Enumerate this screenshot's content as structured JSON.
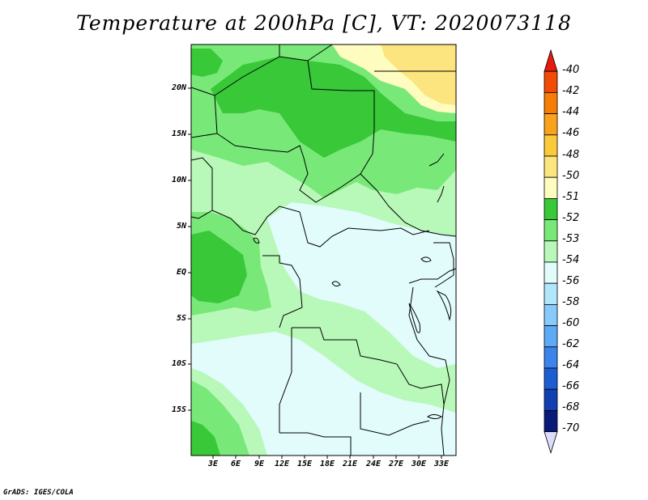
{
  "title": "Temperature at 200hPa [C], VT: 2020073118",
  "credit": "GrADS: IGES/COLA",
  "map": {
    "lat_labels": [
      "20N",
      "15N",
      "10N",
      "5N",
      "EQ",
      "5S",
      "10S",
      "15S"
    ],
    "lat_values": [
      20,
      15,
      10,
      5,
      0,
      -5,
      -10,
      -15
    ],
    "lon_labels": [
      "3E",
      "6E",
      "9E",
      "12E",
      "15E",
      "18E",
      "21E",
      "24E",
      "27E",
      "30E",
      "33E"
    ],
    "lon_values": [
      3,
      6,
      9,
      12,
      15,
      18,
      21,
      24,
      27,
      30,
      33
    ]
  },
  "colorbar": {
    "labels": [
      "-40",
      "-42",
      "-44",
      "-46",
      "-48",
      "-50",
      "-51",
      "-52",
      "-53",
      "-54",
      "-56",
      "-58",
      "-60",
      "-62",
      "-64",
      "-66",
      "-68",
      "-70"
    ],
    "colors": [
      "#e81a0b",
      "#f24b05",
      "#f77d06",
      "#f9a31c",
      "#fbc93a",
      "#fce57e",
      "#fefcbe",
      "#38c838",
      "#78e878",
      "#b8f8b8",
      "#e2fcfc",
      "#b2e6fc",
      "#89cafc",
      "#5eaaf6",
      "#3a84ec",
      "#1c5ed2",
      "#1340b0",
      "#0a1a78",
      "#dcdcfc"
    ]
  },
  "palette": {
    "yellow_pale": "#fefcbe",
    "yellow": "#fce57e",
    "green_dark": "#38c838",
    "green_mid": "#78e878",
    "green_light": "#b8f8b8",
    "cyan_pale": "#e2fcfc",
    "border": "#000000"
  }
}
